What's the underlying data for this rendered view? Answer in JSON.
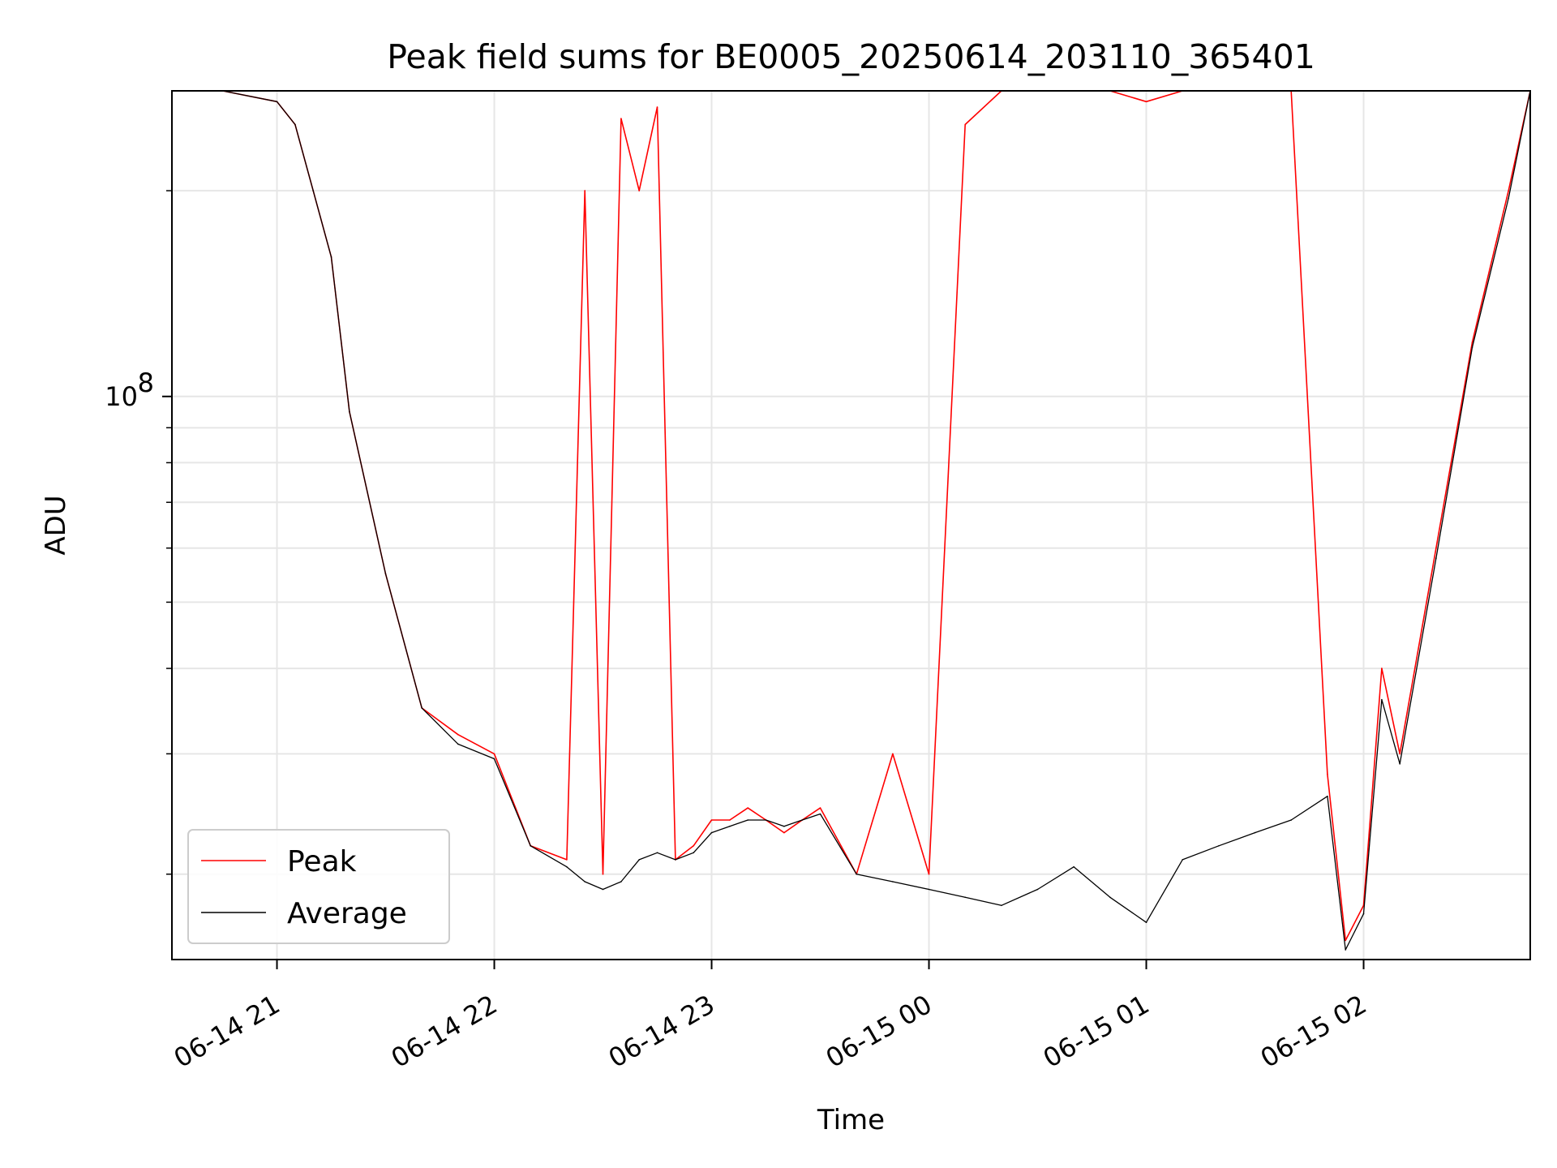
{
  "chart_data": {
    "type": "line",
    "title": "Peak field sums for BE0005_20250614_203110_365401",
    "xlabel": "Time",
    "ylabel": "ADU",
    "x_range": [
      "2025-06-14 20:31",
      "2025-06-15 02:46"
    ],
    "ylim": [
      15000000,
      280000000
    ],
    "yscale": "log",
    "grid": true,
    "y_major_ticks": [
      {
        "value": 100000000,
        "base": "10",
        "exp": "8"
      }
    ],
    "y_minor_ticks": [
      20000000,
      30000000,
      40000000,
      50000000,
      60000000,
      70000000,
      80000000,
      90000000,
      200000000
    ],
    "x_ticks": [
      {
        "value": "2025-06-14 21:00",
        "label": "06-14 21"
      },
      {
        "value": "2025-06-14 22:00",
        "label": "06-14 22"
      },
      {
        "value": "2025-06-14 23:00",
        "label": "06-14 23"
      },
      {
        "value": "2025-06-15 00:00",
        "label": "06-15 00"
      },
      {
        "value": "2025-06-15 01:00",
        "label": "06-15 01"
      },
      {
        "value": "2025-06-15 02:00",
        "label": "06-15 02"
      }
    ],
    "legend": {
      "position": "lower-left"
    },
    "series": [
      {
        "name": "Peak",
        "color": "#ff0000",
        "x": [
          "2025-06-14 20:31",
          "2025-06-14 20:45",
          "2025-06-14 21:00",
          "2025-06-14 21:05",
          "2025-06-14 21:10",
          "2025-06-14 21:15",
          "2025-06-14 21:20",
          "2025-06-14 21:30",
          "2025-06-14 21:40",
          "2025-06-14 21:50",
          "2025-06-14 22:00",
          "2025-06-14 22:10",
          "2025-06-14 22:20",
          "2025-06-14 22:25",
          "2025-06-14 22:30",
          "2025-06-14 22:35",
          "2025-06-14 22:40",
          "2025-06-14 22:45",
          "2025-06-14 22:50",
          "2025-06-14 22:55",
          "2025-06-14 23:00",
          "2025-06-14 23:05",
          "2025-06-14 23:10",
          "2025-06-14 23:15",
          "2025-06-14 23:20",
          "2025-06-14 23:25",
          "2025-06-14 23:30",
          "2025-06-14 23:40",
          "2025-06-14 23:50",
          "2025-06-15 00:00",
          "2025-06-15 00:10",
          "2025-06-15 00:20",
          "2025-06-15 00:30",
          "2025-06-15 00:40",
          "2025-06-15 00:50",
          "2025-06-15 01:00",
          "2025-06-15 01:10",
          "2025-06-15 01:20",
          "2025-06-15 01:30",
          "2025-06-15 01:40",
          "2025-06-15 01:50",
          "2025-06-15 01:55",
          "2025-06-15 02:00",
          "2025-06-15 02:05",
          "2025-06-15 02:10",
          "2025-06-15 02:20",
          "2025-06-15 02:30",
          "2025-06-15 02:40",
          "2025-06-15 02:46"
        ],
        "values": [
          280000000,
          280000000,
          270000000,
          250000000,
          200000000,
          160000000,
          95000000,
          55000000,
          35000000,
          32000000,
          30000000,
          22000000,
          21000000,
          200000000,
          20000000,
          255000000,
          200000000,
          265000000,
          21000000,
          22000000,
          24000000,
          24000000,
          25000000,
          24000000,
          23000000,
          24000000,
          25000000,
          20000000,
          30000000,
          20000000,
          250000000,
          280000000,
          280000000,
          280000000,
          280000000,
          270000000,
          280000000,
          280000000,
          280000000,
          280000000,
          28000000,
          16000000,
          18000000,
          40000000,
          30000000,
          60000000,
          120000000,
          200000000,
          280000000
        ]
      },
      {
        "name": "Average",
        "color": "#000000",
        "x": [
          "2025-06-14 20:31",
          "2025-06-14 20:45",
          "2025-06-14 21:00",
          "2025-06-14 21:05",
          "2025-06-14 21:10",
          "2025-06-14 21:15",
          "2025-06-14 21:20",
          "2025-06-14 21:30",
          "2025-06-14 21:40",
          "2025-06-14 21:50",
          "2025-06-14 22:00",
          "2025-06-14 22:10",
          "2025-06-14 22:20",
          "2025-06-14 22:25",
          "2025-06-14 22:30",
          "2025-06-14 22:35",
          "2025-06-14 22:40",
          "2025-06-14 22:45",
          "2025-06-14 22:50",
          "2025-06-14 22:55",
          "2025-06-14 23:00",
          "2025-06-14 23:05",
          "2025-06-14 23:10",
          "2025-06-14 23:15",
          "2025-06-14 23:20",
          "2025-06-14 23:25",
          "2025-06-14 23:30",
          "2025-06-14 23:40",
          "2025-06-14 23:50",
          "2025-06-15 00:00",
          "2025-06-15 00:10",
          "2025-06-15 00:20",
          "2025-06-15 00:30",
          "2025-06-15 00:40",
          "2025-06-15 00:50",
          "2025-06-15 01:00",
          "2025-06-15 01:10",
          "2025-06-15 01:20",
          "2025-06-15 01:30",
          "2025-06-15 01:40",
          "2025-06-15 01:50",
          "2025-06-15 01:55",
          "2025-06-15 02:00",
          "2025-06-15 02:05",
          "2025-06-15 02:10",
          "2025-06-15 02:20",
          "2025-06-15 02:30",
          "2025-06-15 02:40",
          "2025-06-15 02:46"
        ],
        "values": [
          280000000,
          280000000,
          270000000,
          250000000,
          200000000,
          160000000,
          95000000,
          55000000,
          35000000,
          31000000,
          29500000,
          22000000,
          20500000,
          19500000,
          19000000,
          19500000,
          21000000,
          21500000,
          21000000,
          21500000,
          23000000,
          23500000,
          24000000,
          24000000,
          23500000,
          24000000,
          24500000,
          20000000,
          19500000,
          19000000,
          18500000,
          18000000,
          19000000,
          20500000,
          18500000,
          17000000,
          21000000,
          22000000,
          23000000,
          24000000,
          26000000,
          15500000,
          17500000,
          36000000,
          29000000,
          58000000,
          118000000,
          195000000,
          280000000
        ]
      }
    ]
  }
}
